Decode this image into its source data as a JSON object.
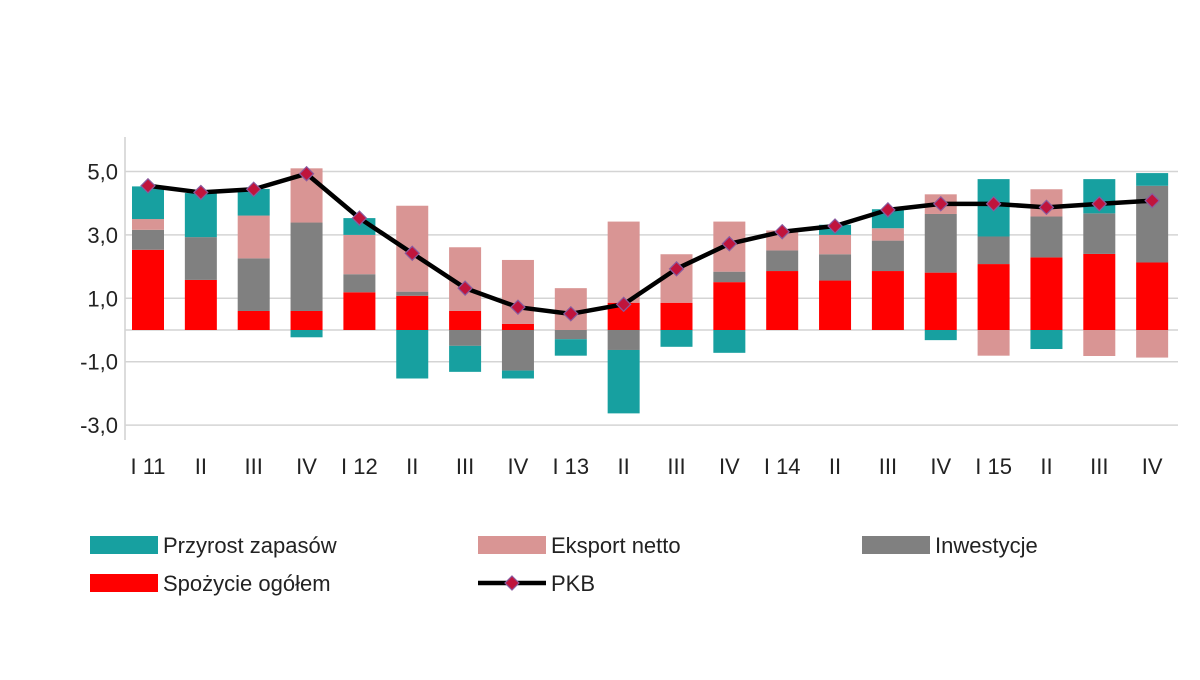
{
  "chart_data": {
    "type": "bar",
    "stacked": true,
    "title": "",
    "xlabel": "",
    "ylabel": "",
    "ylim": [
      -3.5,
      5.5
    ],
    "yticks": [
      5,
      3,
      1,
      -1,
      -3
    ],
    "ytick_labels": [
      "5,0",
      "3,0",
      "1,0",
      "-1,0",
      "-3,0"
    ],
    "grid": true,
    "legend_position": "bottom",
    "categories": [
      "I 11",
      "II",
      "III",
      "IV",
      "I 12",
      "II",
      "III",
      "IV",
      "I 13",
      "II",
      "III",
      "IV",
      "I 14",
      "II",
      "III",
      "IV",
      "I 15",
      "II",
      "III",
      "IV"
    ],
    "series": [
      {
        "name": "Spożycie ogółem",
        "color": "#ff0000",
        "values": [
          2.53,
          1.58,
          0.6,
          0.6,
          1.19,
          1.08,
          0.6,
          0.19,
          0.0,
          0.86,
          0.86,
          1.51,
          1.86,
          1.56,
          1.86,
          1.81,
          2.08,
          2.29,
          2.4,
          2.13
        ]
      },
      {
        "name": "Inwestycje",
        "color": "#808080",
        "values": [
          0.63,
          1.35,
          1.66,
          2.79,
          0.57,
          0.13,
          -0.5,
          -1.28,
          -0.29,
          -0.63,
          0.0,
          0.33,
          0.65,
          0.83,
          0.96,
          1.85,
          0.87,
          1.29,
          1.28,
          2.42
        ]
      },
      {
        "name": "Eksport netto",
        "color": "#d99594",
        "values": [
          0.34,
          0.0,
          1.35,
          1.71,
          1.24,
          2.71,
          2.01,
          2.02,
          1.32,
          2.56,
          1.53,
          1.58,
          0.63,
          0.61,
          0.39,
          0.62,
          -0.81,
          0.86,
          -0.82,
          -0.87
        ]
      },
      {
        "name": "Przyrost zapasów",
        "color": "#17a0a0",
        "values": [
          1.03,
          1.39,
          0.84,
          -0.23,
          0.53,
          -1.53,
          -0.82,
          -0.25,
          -0.52,
          -2.0,
          -0.53,
          -0.72,
          0.0,
          0.32,
          0.6,
          -0.32,
          1.81,
          -0.6,
          1.08,
          0.4
        ]
      }
    ],
    "line": {
      "name": "PKB",
      "color": "#000000",
      "marker_color": "#c0143c",
      "values": [
        4.55,
        4.34,
        4.44,
        4.93,
        3.53,
        2.42,
        1.32,
        0.72,
        0.51,
        0.81,
        1.93,
        2.72,
        3.1,
        3.28,
        3.79,
        3.98,
        3.98,
        3.87,
        3.98,
        4.08
      ]
    },
    "legend": [
      {
        "label": "Przyrost zapasów",
        "kind": "bar",
        "color": "#17a0a0"
      },
      {
        "label": "Eksport netto",
        "kind": "bar",
        "color": "#d99594"
      },
      {
        "label": "Inwestycje",
        "kind": "bar",
        "color": "#808080"
      },
      {
        "label": "Spożycie ogółem",
        "kind": "bar",
        "color": "#ff0000"
      },
      {
        "label": "PKB",
        "kind": "line",
        "color": "#000000"
      }
    ]
  }
}
